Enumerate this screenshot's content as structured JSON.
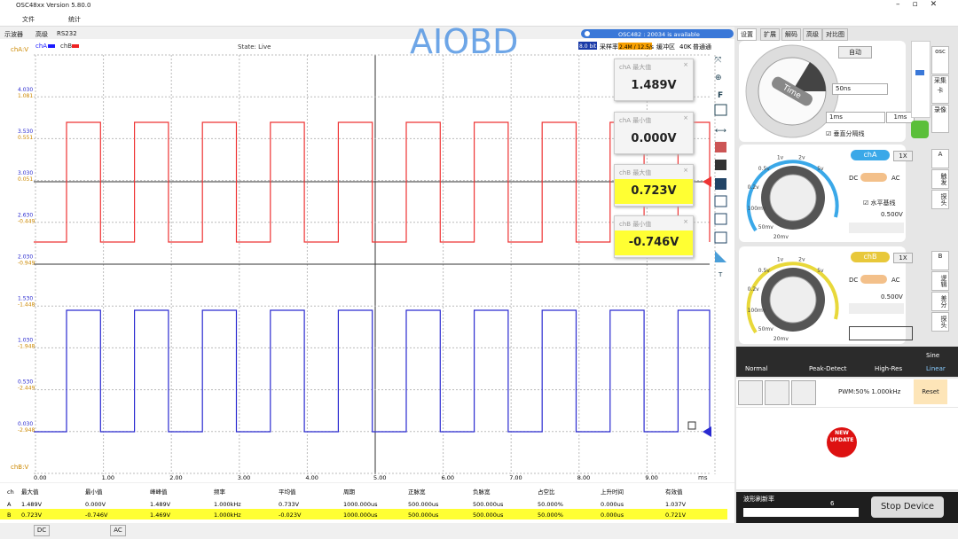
{
  "window": {
    "title": "OSC48xx  Version 5.80.0"
  },
  "menu": [
    "文件",
    "统计"
  ],
  "tabs": [
    "示波器",
    "高级",
    "RS232"
  ],
  "watermark": "AIOBD",
  "scope": {
    "legend": [
      "chA",
      "chB"
    ],
    "state": "State: Live",
    "y_label_a": "chA:V",
    "y_label_b": "chB:V",
    "axis_left": [
      [
        "4.030",
        "1.081"
      ],
      [
        "3.530",
        "0.551"
      ],
      [
        "3.030",
        "0.051"
      ],
      [
        "2.630",
        "-0.449"
      ],
      [
        "2.030",
        "-0.949"
      ],
      [
        "1.530",
        "-1.448"
      ],
      [
        "1.030",
        "-1.948"
      ],
      [
        "0.530",
        "-2.449"
      ],
      [
        "0.030",
        "-2.948"
      ]
    ],
    "x_labels": [
      "0.00",
      "1.00",
      "2.00",
      "3.00",
      "4.00",
      "5.00",
      "6.00",
      "7.00",
      "8.00",
      "9.00"
    ],
    "x_unit": "ms",
    "info": [
      "8.0 bit",
      "采样率",
      "2.4M / 12.5/s",
      "缓冲区",
      "40K",
      "普通通"
    ],
    "notice": "OSC482 : 20034 is available"
  },
  "measures": [
    {
      "title": "chA 最大值",
      "value": "1.489V"
    },
    {
      "title": "chA 最小值",
      "value": "0.000V"
    },
    {
      "title": "chB 最大值",
      "value": "0.723V"
    },
    {
      "title": "chB 最小值",
      "value": "-0.746V"
    }
  ],
  "panel": {
    "tabs": [
      "设置",
      "扩展",
      "解码",
      "高级",
      "对比图"
    ],
    "time_knob": "Time",
    "auto": "自动",
    "timebase": "50ns",
    "time1": "1ms",
    "time2": "1ms",
    "divider": "垂直分隔线",
    "side": [
      "osc",
      "采集卡",
      "录像"
    ],
    "cha": {
      "name": "chA",
      "probe": "1X",
      "dc": "DC",
      "ac": "AC",
      "baseline": "水平基线",
      "volts": "0.500V",
      "side": [
        "A",
        "触发",
        "探头"
      ]
    },
    "chb": {
      "name": "chB",
      "probe": "1X",
      "dc": "DC",
      "ac": "AC",
      "volts": "0.500V",
      "side": [
        "B",
        "逻辑",
        "差分",
        "探头"
      ]
    },
    "knob_labels": [
      "20mv",
      "50mv",
      "100mv",
      "0.2v",
      "0.5v",
      "1v",
      "2v",
      "5v"
    ],
    "modes": [
      "Normal",
      "Peak-Detect",
      "High-Res",
      "Sine",
      "Linear"
    ],
    "pwm": "PWM:50% 1.000kHz",
    "reset": "Reset",
    "update": "NEW UPDATE",
    "refresh": "波形刷新率",
    "refresh_value": "6",
    "stop": "Stop Device"
  },
  "table": {
    "header": [
      "ch",
      "最大值",
      "最小值",
      "峰峰值",
      "频率",
      "平均值",
      "周期",
      "正脉宽",
      "负脉宽",
      "占空比",
      "上升时间",
      "有效值"
    ],
    "rows": [
      [
        "A",
        "1.489V",
        "0.000V",
        "1.489V",
        "1.000kHz",
        "0.733V",
        "1000.000us",
        "500.000us",
        "500.000us",
        "50.000%",
        "0.000us",
        "1.037V"
      ],
      [
        "B",
        "0.723V",
        "-0.746V",
        "1.469V",
        "1.000kHz",
        "-0.023V",
        "1000.000us",
        "500.000us",
        "500.000us",
        "50.000%",
        "0.000us",
        "0.721V"
      ]
    ]
  },
  "status": [
    "DC",
    "AC"
  ]
}
